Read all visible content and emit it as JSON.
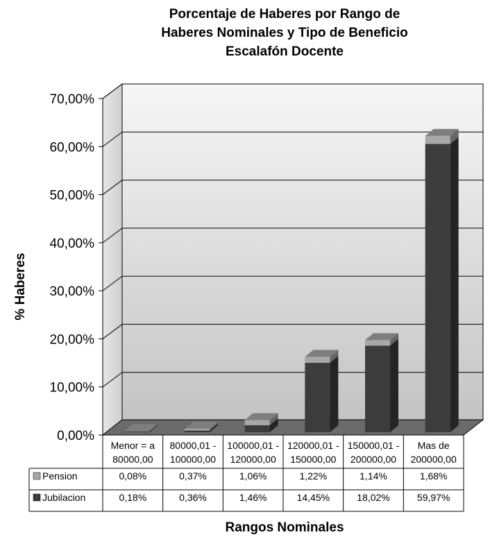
{
  "chart_data": {
    "type": "bar",
    "title": [
      "Porcentaje de Haberes por Rango de",
      "Haberes Nominales y Tipo de Beneficio",
      "Escalafón Docente"
    ],
    "xlabel": "Rangos Nominales",
    "ylabel": "% Haberes",
    "ylim": [
      0,
      70
    ],
    "yticks": [
      "0,00%",
      "10,00%",
      "20,00%",
      "30,00%",
      "40,00%",
      "50,00%",
      "60,00%",
      "70,00%"
    ],
    "stacked": true,
    "grid": true,
    "categories": [
      [
        "Menor = a",
        "80000,00"
      ],
      [
        "80000,01 -",
        "100000,00"
      ],
      [
        "100000,01 -",
        "120000,00"
      ],
      [
        "120000,01 -",
        "150000,00"
      ],
      [
        "150000,01 -",
        "200000,00"
      ],
      [
        "Mas de",
        "200000,00"
      ]
    ],
    "series": [
      {
        "name": "Jubilacion",
        "values": [
          0.18,
          0.36,
          1.46,
          14.45,
          18.02,
          59.97
        ],
        "labels": [
          "0,18%",
          "0,36%",
          "1,46%",
          "14,45%",
          "18,02%",
          "59,97%"
        ],
        "color": "#3c3c3c"
      },
      {
        "name": "Pension",
        "values": [
          0.08,
          0.37,
          1.06,
          1.22,
          1.14,
          1.68
        ],
        "labels": [
          "0,08%",
          "0,37%",
          "1,06%",
          "1,22%",
          "1,14%",
          "1,68%"
        ],
        "color": "#a8a8a8"
      }
    ]
  }
}
